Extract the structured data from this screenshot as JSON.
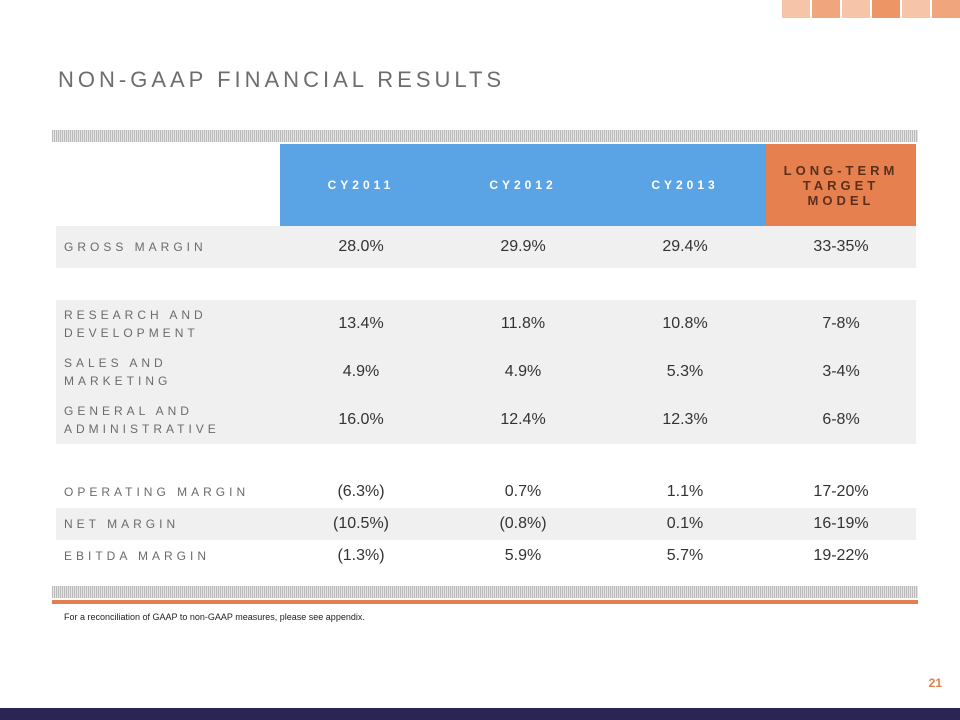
{
  "slide": {
    "title": "NON-GAAP FINANCIAL RESULTS",
    "footnote": "For a reconciliation of GAAP to non-GAAP measures, please see appendix.",
    "page_number": "21"
  },
  "colors": {
    "header_blue": "#5aa4e6",
    "header_orange": "#e6814f",
    "accent_orange": "#e37f4f",
    "bottom_bar": "#2a2552",
    "row_shade": "#f0f0f0"
  },
  "table": {
    "headers": [
      "CY2011",
      "CY2012",
      "CY2013",
      "LONG-TERM TARGET MODEL"
    ],
    "rows": [
      {
        "label": "GROSS MARGIN",
        "values": [
          "28.0%",
          "29.9%",
          "29.4%",
          "33-35%"
        ]
      },
      {
        "label": "RESEARCH AND DEVELOPMENT",
        "values": [
          "13.4%",
          "11.8%",
          "10.8%",
          "7-8%"
        ]
      },
      {
        "label": "SALES AND MARKETING",
        "values": [
          "4.9%",
          "4.9%",
          "5.3%",
          "3-4%"
        ]
      },
      {
        "label": "GENERAL AND ADMINISTRATIVE",
        "values": [
          "16.0%",
          "12.4%",
          "12.3%",
          "6-8%"
        ]
      },
      {
        "label": "OPERATING MARGIN",
        "values": [
          "(6.3%)",
          "0.7%",
          "1.1%",
          "17-20%"
        ]
      },
      {
        "label": "NET MARGIN",
        "values": [
          "(10.5%)",
          "(0.8%)",
          "0.1%",
          "16-19%"
        ]
      },
      {
        "label": "EBITDA MARGIN",
        "values": [
          "(1.3%)",
          "5.9%",
          "5.7%",
          "19-22%"
        ]
      }
    ]
  }
}
